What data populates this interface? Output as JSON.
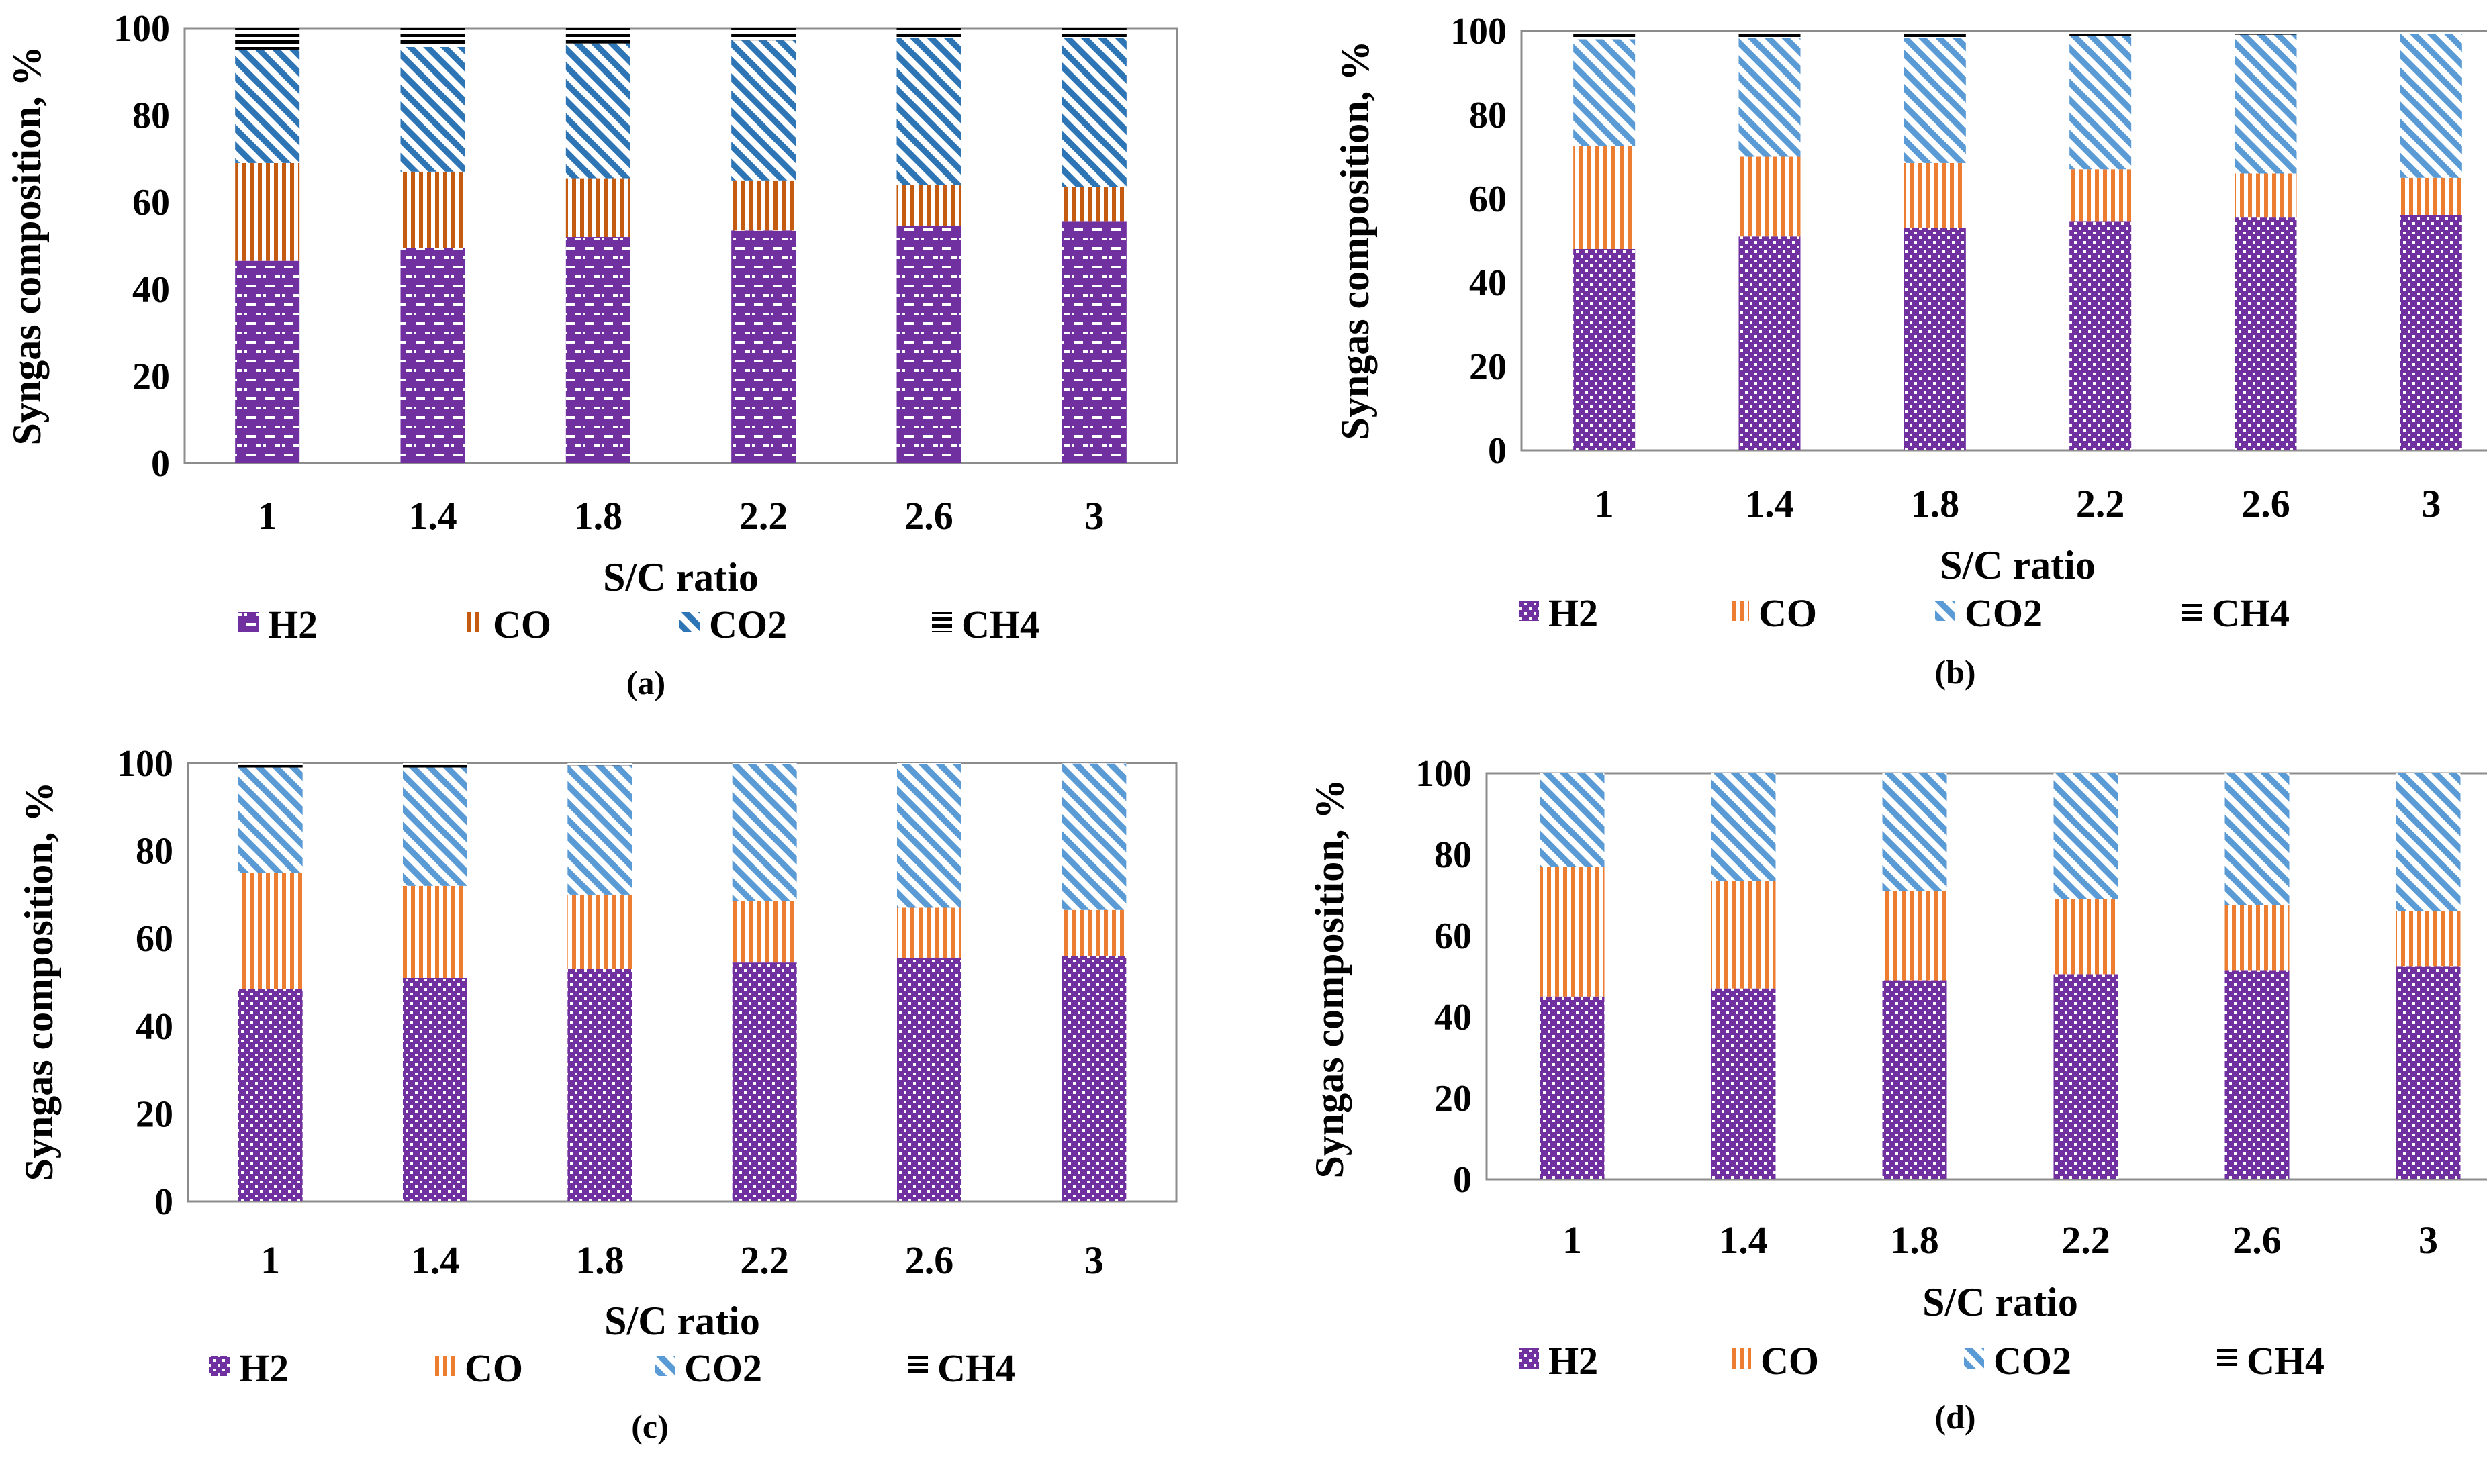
{
  "colors": {
    "H2": "#7030a0",
    "CO_a": "#c55a11",
    "CO2_a": "#2e75b6",
    "CO": "#ed7d31",
    "CO2": "#5b9bd5",
    "CH4": "#000000"
  },
  "chart_data": [
    {
      "type": "bar",
      "stacked": true,
      "panel_label": "(a)",
      "xlabel": "S/C ratio",
      "ylabel": "Syngas composition, %",
      "ylim": [
        0,
        100
      ],
      "yticks": [
        "0",
        "20",
        "40",
        "60",
        "80",
        "100"
      ],
      "categories": [
        "1",
        "1.4",
        "1.8",
        "2.2",
        "2.6",
        "3"
      ],
      "legend_position": "bottom",
      "series": [
        {
          "name": "H2",
          "values": [
            46.5,
            49.5,
            52,
            53.5,
            54.5,
            55.5
          ],
          "color": "#7030a0",
          "pattern": "brick"
        },
        {
          "name": "CO",
          "values": [
            22.5,
            17.5,
            13.5,
            11.5,
            9.5,
            8
          ],
          "color": "#c55a11",
          "pattern": "vertical"
        },
        {
          "name": "CO2",
          "values": [
            26,
            28.7,
            31,
            32.2,
            33.7,
            34.3
          ],
          "color": "#2e75b6",
          "pattern": "diagonal"
        },
        {
          "name": "CH4",
          "values": [
            5,
            4.3,
            3.5,
            2.8,
            2.3,
            2.2
          ],
          "color": "#000000",
          "pattern": "horizontal"
        }
      ]
    },
    {
      "type": "bar",
      "stacked": true,
      "panel_label": "(b)",
      "xlabel": "S/C ratio",
      "ylabel": "Syngas composition, %",
      "ylim": [
        0,
        100
      ],
      "yticks": [
        "0",
        "20",
        "40",
        "60",
        "80",
        "100"
      ],
      "categories": [
        "1",
        "1.4",
        "1.8",
        "2.2",
        "2.6",
        "3"
      ],
      "legend_position": "bottom",
      "series": [
        {
          "name": "H2",
          "values": [
            48,
            51,
            53,
            54.5,
            55.5,
            56
          ],
          "color": "#7030a0",
          "pattern": "dots"
        },
        {
          "name": "CO",
          "values": [
            24.5,
            19,
            15.5,
            12.5,
            10.5,
            9
          ],
          "color": "#ed7d31",
          "pattern": "vertical"
        },
        {
          "name": "CO2",
          "values": [
            25.5,
            28.3,
            29.9,
            31.8,
            33.1,
            34.2
          ],
          "color": "#5b9bd5",
          "pattern": "diagonal"
        },
        {
          "name": "CH4",
          "values": [
            1.5,
            1.2,
            1,
            0.7,
            0.5,
            0.4
          ],
          "color": "#000000",
          "pattern": "horizontal"
        }
      ]
    },
    {
      "type": "bar",
      "stacked": true,
      "panel_label": "(c)",
      "xlabel": "S/C ratio",
      "ylabel": "Syngas composition, %",
      "ylim": [
        0,
        100
      ],
      "yticks": [
        "0",
        "20",
        "40",
        "60",
        "80",
        "100"
      ],
      "categories": [
        "1",
        "1.4",
        "1.8",
        "2.2",
        "2.6",
        "3"
      ],
      "legend_position": "bottom",
      "series": [
        {
          "name": "H2",
          "values": [
            48.5,
            51,
            53,
            54.5,
            55.5,
            56
          ],
          "color": "#7030a0",
          "pattern": "dots"
        },
        {
          "name": "CO",
          "values": [
            26.5,
            21,
            17,
            14,
            11.5,
            10.5
          ],
          "color": "#ed7d31",
          "pattern": "vertical"
        },
        {
          "name": "CO2",
          "values": [
            24,
            27,
            29.5,
            31.2,
            32.8,
            33.4
          ],
          "color": "#5b9bd5",
          "pattern": "diagonal"
        },
        {
          "name": "CH4",
          "values": [
            1,
            1,
            0.5,
            0.3,
            0.2,
            0.1
          ],
          "color": "#000000",
          "pattern": "horizontal"
        }
      ]
    },
    {
      "type": "bar",
      "stacked": true,
      "panel_label": "(d)",
      "xlabel": "S/C ratio",
      "ylabel": "Syngas composition, %",
      "ylim": [
        0,
        100
      ],
      "yticks": [
        "0",
        "20",
        "40",
        "60",
        "80",
        "100"
      ],
      "categories": [
        "1",
        "1.4",
        "1.8",
        "2.2",
        "2.6",
        "3"
      ],
      "legend_position": "bottom",
      "series": [
        {
          "name": "H2",
          "values": [
            45,
            47,
            49,
            50.5,
            51.5,
            52.5
          ],
          "color": "#7030a0",
          "pattern": "dots"
        },
        {
          "name": "CO",
          "values": [
            32,
            26.5,
            22,
            18.5,
            16,
            13.5
          ],
          "color": "#ed7d31",
          "pattern": "vertical"
        },
        {
          "name": "CO2",
          "values": [
            23,
            26.5,
            29,
            31,
            32.5,
            34
          ],
          "color": "#5b9bd5",
          "pattern": "diagonal"
        },
        {
          "name": "CH4",
          "values": [
            0,
            0,
            0,
            0,
            0,
            0
          ],
          "color": "#000000",
          "pattern": "horizontal"
        }
      ]
    }
  ]
}
